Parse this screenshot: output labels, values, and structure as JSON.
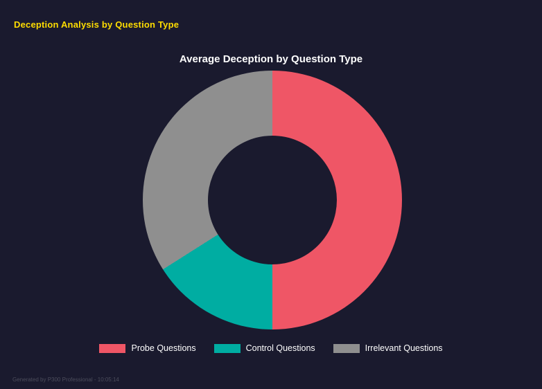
{
  "page": {
    "heading": "Deception Analysis by Question Type",
    "heading_color": "#ffdd00",
    "background_color": "#1a1a2e",
    "footer": "Generated by P300 Professional - 10:05:14"
  },
  "chart_data": {
    "type": "pie",
    "variant": "donut",
    "title": "Average Deception by Question Type",
    "labels": [
      "Probe Questions",
      "Control Questions",
      "Irrelevant Questions"
    ],
    "values": [
      50,
      16,
      34
    ],
    "colors": [
      "#ef5666",
      "#00ada2",
      "#8f8f8f"
    ],
    "hole_ratio": 0.5,
    "start_angle_deg": 0,
    "direction": "clockwise",
    "legend_position": "bottom"
  }
}
